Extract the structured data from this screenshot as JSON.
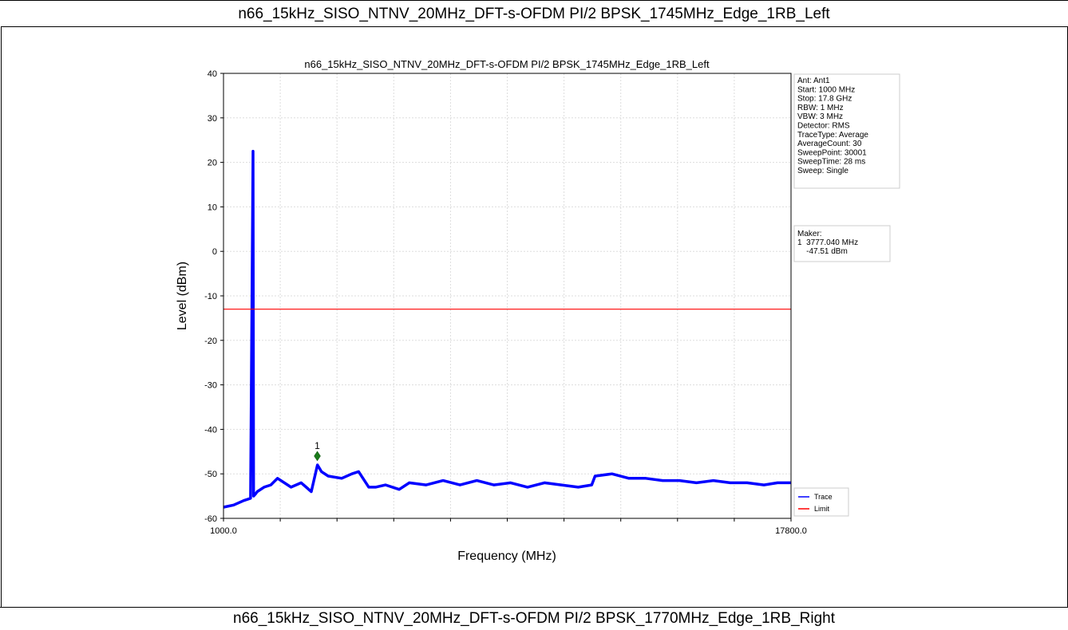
{
  "captions": {
    "top": "n66_15kHz_SISO_NTNV_20MHz_DFT-s-OFDM PI/2 BPSK_1745MHz_Edge_1RB_Left",
    "bottom": "n66_15kHz_SISO_NTNV_20MHz_DFT-s-OFDM PI/2 BPSK_1770MHz_Edge_1RB_Right"
  },
  "chart_data": {
    "type": "line",
    "title": "n66_15kHz_SISO_NTNV_20MHz_DFT-s-OFDM PI/2 BPSK_1745MHz_Edge_1RB_Left",
    "xlabel": "Frequency (MHz)",
    "ylabel": "Level (dBm)",
    "xlim": [
      1000,
      17800
    ],
    "ylim": [
      -60,
      40
    ],
    "x_tick_labels": [
      "1000.0",
      "17800.0"
    ],
    "y_ticks": [
      40,
      30,
      20,
      10,
      0,
      -10,
      -20,
      -30,
      -40,
      -50,
      -60
    ],
    "grid": true,
    "series": [
      {
        "name": "Trace",
        "color": "#0000ff",
        "x": [
          1000,
          1300,
          1600,
          1800,
          1875,
          1890,
          1950,
          2000,
          2200,
          2400,
          2600,
          3000,
          3300,
          3600,
          3780,
          3900,
          4100,
          4500,
          4800,
          5000,
          5300,
          5500,
          5800,
          6200,
          6500,
          7000,
          7500,
          8000,
          8500,
          9000,
          9500,
          10000,
          10500,
          11000,
          11500,
          11900,
          12000,
          12500,
          13000,
          13500,
          14000,
          14500,
          15000,
          15500,
          16000,
          16500,
          17000,
          17400,
          17800
        ],
        "y": [
          -57.5,
          -57,
          -56,
          -55.5,
          22.5,
          -55,
          -54.5,
          -54,
          -53,
          -52.5,
          -51,
          -53,
          -52,
          -54,
          -48,
          -49.5,
          -50.5,
          -51,
          -50,
          -49.5,
          -53,
          -53,
          -52.5,
          -53.5,
          -52,
          -52.5,
          -51.5,
          -52.5,
          -51.5,
          -52.5,
          -52,
          -53,
          -52,
          -52.5,
          -53,
          -52.5,
          -50.5,
          -50,
          -51,
          -51,
          -51.5,
          -51.5,
          -52,
          -51.5,
          -52,
          -52,
          -52.5,
          -52,
          -52
        ]
      },
      {
        "name": "Limit",
        "color": "#ff0000",
        "x": [
          1000,
          17800
        ],
        "y": [
          -13,
          -13
        ]
      }
    ],
    "marker": {
      "label": "1",
      "x": 3777.04,
      "y": -46,
      "color": "#1a7a1a"
    },
    "legend": "bottom-right",
    "info_box": [
      "Ant: Ant1",
      "Start: 1000 MHz",
      "Stop: 17.8 GHz",
      "RBW: 1 MHz",
      "VBW: 3 MHz",
      "Detector: RMS",
      "TraceType: Average",
      "AverageCount: 30",
      "SweepPoint: 30001",
      "SweepTime: 28 ms",
      "Sweep: Single"
    ],
    "marker_box": [
      "Maker:",
      "1  3777.040 MHz",
      "    -47.51 dBm"
    ]
  }
}
